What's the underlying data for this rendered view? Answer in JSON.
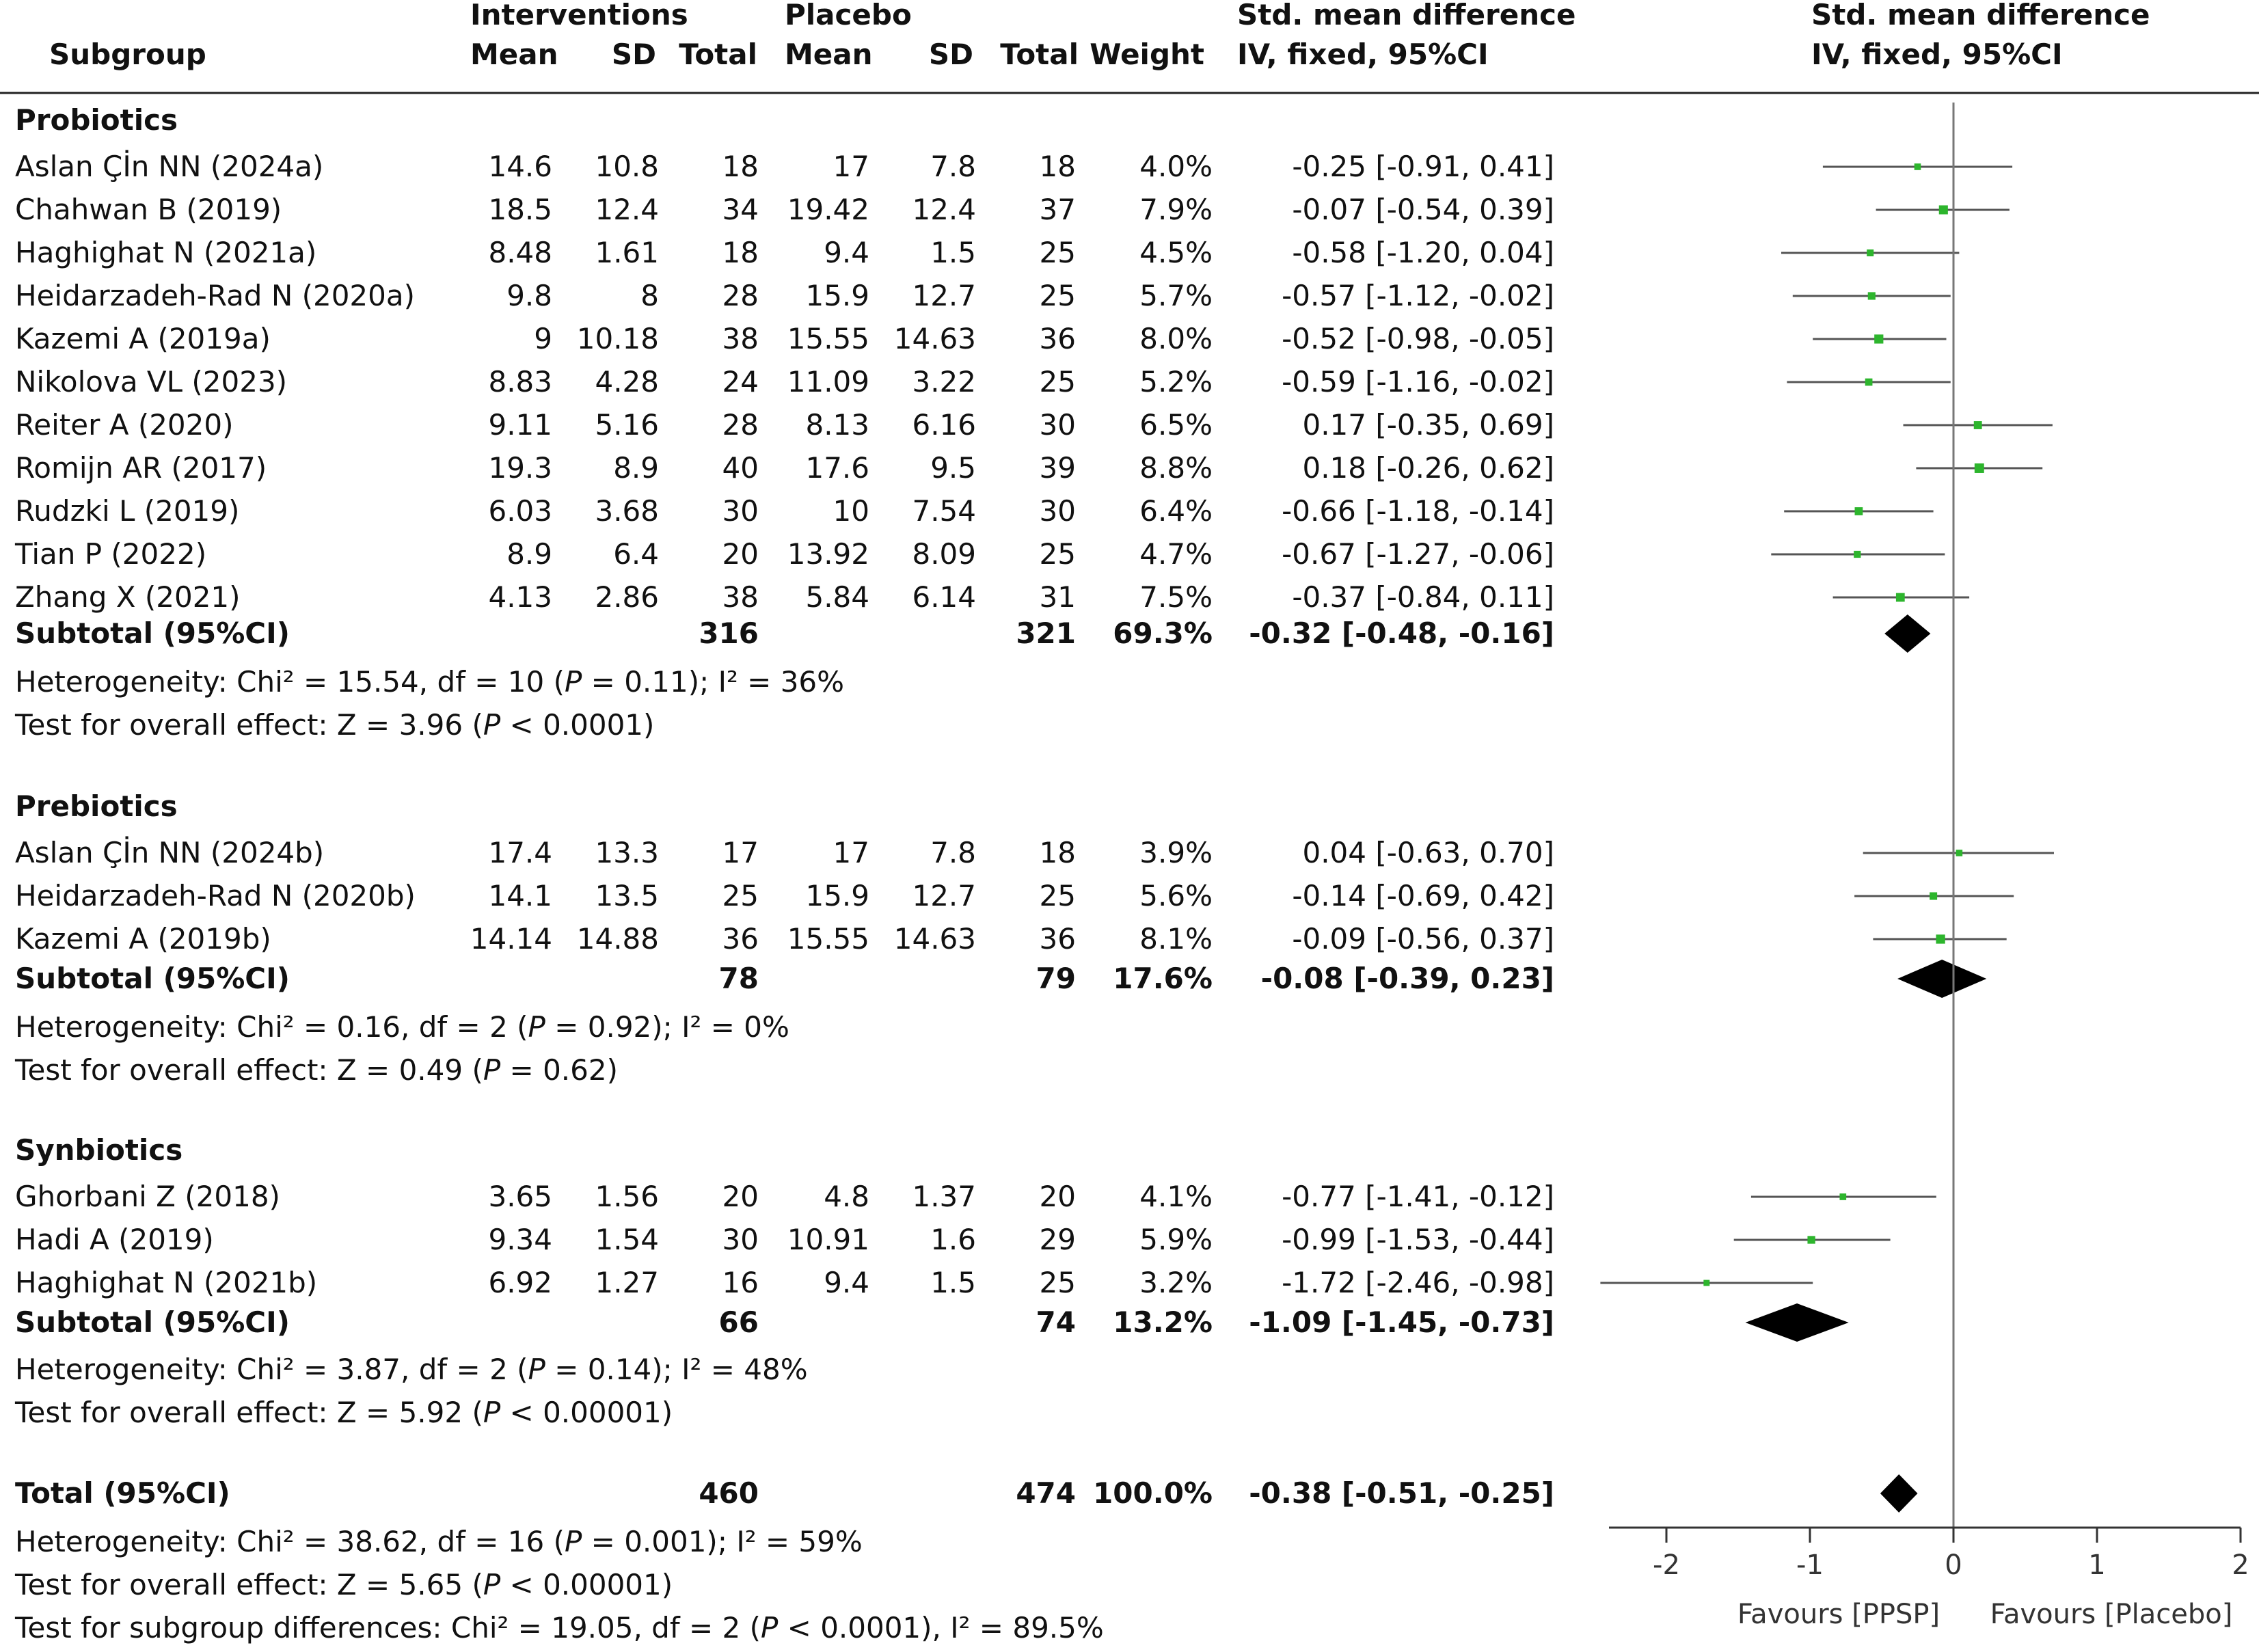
{
  "chart_data": {
    "type": "forest",
    "headers": {
      "subgroup": "Subgroup",
      "interventions": "Interventions",
      "placebo": "Placebo",
      "mean": "Mean",
      "sd": "SD",
      "total": "Total",
      "weight": "Weight",
      "smd": "Std. mean difference",
      "method": "IV, fixed, 95%CI",
      "plot_title": "Std. mean difference",
      "plot_method": "IV, fixed, 95%CI"
    },
    "groups": [
      {
        "name": "Probiotics",
        "studies": [
          {
            "study": "Aslan Çİn NN (2024a)",
            "m1": "14.6",
            "sd1": "10.8",
            "n1": "18",
            "m2": "17",
            "sd2": "7.8",
            "n2": "18",
            "weight": "4.0%",
            "ci_text": "-0.25 [-0.91, 0.41]",
            "est": -0.25,
            "lo": -0.91,
            "hi": 0.41,
            "w": 4.0
          },
          {
            "study": "Chahwan B (2019)",
            "m1": "18.5",
            "sd1": "12.4",
            "n1": "34",
            "m2": "19.42",
            "sd2": "12.4",
            "n2": "37",
            "weight": "7.9%",
            "ci_text": "-0.07 [-0.54, 0.39]",
            "est": -0.07,
            "lo": -0.54,
            "hi": 0.39,
            "w": 7.9
          },
          {
            "study": "Haghighat N (2021a)",
            "m1": "8.48",
            "sd1": "1.61",
            "n1": "18",
            "m2": "9.4",
            "sd2": "1.5",
            "n2": "25",
            "weight": "4.5%",
            "ci_text": "-0.58 [-1.20, 0.04]",
            "est": -0.58,
            "lo": -1.2,
            "hi": 0.04,
            "w": 4.5
          },
          {
            "study": "Heidarzadeh-Rad N (2020a)",
            "m1": "9.8",
            "sd1": "8",
            "n1": "28",
            "m2": "15.9",
            "sd2": "12.7",
            "n2": "25",
            "weight": "5.7%",
            "ci_text": "-0.57 [-1.12, -0.02]",
            "est": -0.57,
            "lo": -1.12,
            "hi": -0.02,
            "w": 5.7
          },
          {
            "study": "Kazemi A (2019a)",
            "m1": "9",
            "sd1": "10.18",
            "n1": "38",
            "m2": "15.55",
            "sd2": "14.63",
            "n2": "36",
            "weight": "8.0%",
            "ci_text": "-0.52 [-0.98, -0.05]",
            "est": -0.52,
            "lo": -0.98,
            "hi": -0.05,
            "w": 8.0
          },
          {
            "study": "Nikolova VL (2023)",
            "m1": "8.83",
            "sd1": "4.28",
            "n1": "24",
            "m2": "11.09",
            "sd2": "3.22",
            "n2": "25",
            "weight": "5.2%",
            "ci_text": "-0.59 [-1.16, -0.02]",
            "est": -0.59,
            "lo": -1.16,
            "hi": -0.02,
            "w": 5.2
          },
          {
            "study": "Reiter A (2020)",
            "m1": "9.11",
            "sd1": "5.16",
            "n1": "28",
            "m2": "8.13",
            "sd2": "6.16",
            "n2": "30",
            "weight": "6.5%",
            "ci_text": "0.17 [-0.35, 0.69]",
            "est": 0.17,
            "lo": -0.35,
            "hi": 0.69,
            "w": 6.5
          },
          {
            "study": "Romijn AR (2017)",
            "m1": "19.3",
            "sd1": "8.9",
            "n1": "40",
            "m2": "17.6",
            "sd2": "9.5",
            "n2": "39",
            "weight": "8.8%",
            "ci_text": "0.18 [-0.26, 0.62]",
            "est": 0.18,
            "lo": -0.26,
            "hi": 0.62,
            "w": 8.8
          },
          {
            "study": "Rudzki L (2019)",
            "m1": "6.03",
            "sd1": "3.68",
            "n1": "30",
            "m2": "10",
            "sd2": "7.54",
            "n2": "30",
            "weight": "6.4%",
            "ci_text": "-0.66 [-1.18, -0.14]",
            "est": -0.66,
            "lo": -1.18,
            "hi": -0.14,
            "w": 6.4
          },
          {
            "study": "Tian P (2022)",
            "m1": "8.9",
            "sd1": "6.4",
            "n1": "20",
            "m2": "13.92",
            "sd2": "8.09",
            "n2": "25",
            "weight": "4.7%",
            "ci_text": "-0.67 [-1.27, -0.06]",
            "est": -0.67,
            "lo": -1.27,
            "hi": -0.06,
            "w": 4.7
          },
          {
            "study": "Zhang X (2021)",
            "m1": "4.13",
            "sd1": "2.86",
            "n1": "38",
            "m2": "5.84",
            "sd2": "6.14",
            "n2": "31",
            "weight": "7.5%",
            "ci_text": "-0.37 [-0.84, 0.11]",
            "est": -0.37,
            "lo": -0.84,
            "hi": 0.11,
            "w": 7.5
          }
        ],
        "subtotal": {
          "label": "Subtotal (95%CI)",
          "n1": "316",
          "n2": "321",
          "weight": "69.3%",
          "ci_text": "-0.32 [-0.48, -0.16]",
          "est": -0.32,
          "lo": -0.48,
          "hi": -0.16
        },
        "notes": [
          [
            {
              "t": "Heterogeneity: Chi² = 15.54, df = 10 ("
            },
            {
              "t": "P",
              "i": true
            },
            {
              "t": " = 0.11); I² = 36%"
            }
          ],
          [
            {
              "t": "Test for overall effect: Z = 3.96 ("
            },
            {
              "t": "P",
              "i": true
            },
            {
              "t": " < 0.0001)"
            }
          ]
        ]
      },
      {
        "name": "Prebiotics",
        "studies": [
          {
            "study": "Aslan Çİn NN (2024b)",
            "m1": "17.4",
            "sd1": "13.3",
            "n1": "17",
            "m2": "17",
            "sd2": "7.8",
            "n2": "18",
            "weight": "3.9%",
            "ci_text": "0.04 [-0.63, 0.70]",
            "est": 0.04,
            "lo": -0.63,
            "hi": 0.7,
            "w": 3.9
          },
          {
            "study": "Heidarzadeh-Rad N (2020b)",
            "m1": "14.1",
            "sd1": "13.5",
            "n1": "25",
            "m2": "15.9",
            "sd2": "12.7",
            "n2": "25",
            "weight": "5.6%",
            "ci_text": "-0.14 [-0.69, 0.42]",
            "est": -0.14,
            "lo": -0.69,
            "hi": 0.42,
            "w": 5.6
          },
          {
            "study": "Kazemi A (2019b)",
            "m1": "14.14",
            "sd1": "14.88",
            "n1": "36",
            "m2": "15.55",
            "sd2": "14.63",
            "n2": "36",
            "weight": "8.1%",
            "ci_text": "-0.09 [-0.56, 0.37]",
            "est": -0.09,
            "lo": -0.56,
            "hi": 0.37,
            "w": 8.1
          }
        ],
        "subtotal": {
          "label": "Subtotal (95%CI)",
          "n1": "78",
          "n2": "79",
          "weight": "17.6%",
          "ci_text": "-0.08 [-0.39, 0.23]",
          "est": -0.08,
          "lo": -0.39,
          "hi": 0.23
        },
        "notes": [
          [
            {
              "t": "Heterogeneity: Chi² = 0.16, df = 2 ("
            },
            {
              "t": "P",
              "i": true
            },
            {
              "t": " = 0.92); I² = 0%"
            }
          ],
          [
            {
              "t": "Test for overall effect: Z = 0.49 ("
            },
            {
              "t": "P",
              "i": true
            },
            {
              "t": " = 0.62)"
            }
          ]
        ]
      },
      {
        "name": "Synbiotics",
        "studies": [
          {
            "study": "Ghorbani Z (2018)",
            "m1": "3.65",
            "sd1": "1.56",
            "n1": "20",
            "m2": "4.8",
            "sd2": "1.37",
            "n2": "20",
            "weight": "4.1%",
            "ci_text": "-0.77 [-1.41, -0.12]",
            "est": -0.77,
            "lo": -1.41,
            "hi": -0.12,
            "w": 4.1
          },
          {
            "study": "Hadi A (2019)",
            "m1": "9.34",
            "sd1": "1.54",
            "n1": "30",
            "m2": "10.91",
            "sd2": "1.6",
            "n2": "29",
            "weight": "5.9%",
            "ci_text": "-0.99 [-1.53, -0.44]",
            "est": -0.99,
            "lo": -1.53,
            "hi": -0.44,
            "w": 5.9
          },
          {
            "study": "Haghighat N (2021b)",
            "m1": "6.92",
            "sd1": "1.27",
            "n1": "16",
            "m2": "9.4",
            "sd2": "1.5",
            "n2": "25",
            "weight": "3.2%",
            "ci_text": "-1.72 [-2.46, -0.98]",
            "est": -1.72,
            "lo": -2.46,
            "hi": -0.98,
            "w": 3.2
          }
        ],
        "subtotal": {
          "label": "Subtotal (95%CI)",
          "n1": "66",
          "n2": "74",
          "weight": "13.2%",
          "ci_text": "-1.09 [-1.45, -0.73]",
          "est": -1.09,
          "lo": -1.45,
          "hi": -0.73
        },
        "notes": [
          [
            {
              "t": "Heterogeneity: Chi² = 3.87, df = 2 ("
            },
            {
              "t": "P",
              "i": true
            },
            {
              "t": " = 0.14); I² = 48%"
            }
          ],
          [
            {
              "t": "Test for overall effect: Z = 5.92 ("
            },
            {
              "t": "P",
              "i": true
            },
            {
              "t": " < 0.00001)"
            }
          ]
        ]
      }
    ],
    "total": {
      "label": "Total (95%CI)",
      "n1": "460",
      "n2": "474",
      "weight": "100.0%",
      "ci_text": "-0.38 [-0.51, -0.25]",
      "est": -0.38,
      "lo": -0.51,
      "hi": -0.25,
      "notes": [
        [
          {
            "t": "Heterogeneity: Chi² = 38.62, df = 16 ("
          },
          {
            "t": "P",
            "i": true
          },
          {
            "t": " = 0.001); I² = 59%"
          }
        ],
        [
          {
            "t": "Test for overall effect: Z = 5.65 ("
          },
          {
            "t": "P",
            "i": true
          },
          {
            "t": " < 0.00001)"
          }
        ],
        [
          {
            "t": "Test for subgroup differences: Chi² = 19.05, df = 2 ("
          },
          {
            "t": "P",
            "i": true
          },
          {
            "t": " < 0.0001), I² = 89.5%"
          }
        ]
      ]
    },
    "x_axis": {
      "xlim": [
        -2.4,
        2
      ],
      "ticks": [
        -2,
        -1,
        0,
        1,
        2
      ],
      "tick_labels": [
        "-2",
        "-1",
        "0",
        "1",
        "2"
      ],
      "favours_left": "Favours [PPSP]",
      "favours_right": "Favours [Placebo]"
    },
    "colors": {
      "marker": "#2db52d",
      "diamond": "#000000",
      "line": "#555555"
    }
  }
}
